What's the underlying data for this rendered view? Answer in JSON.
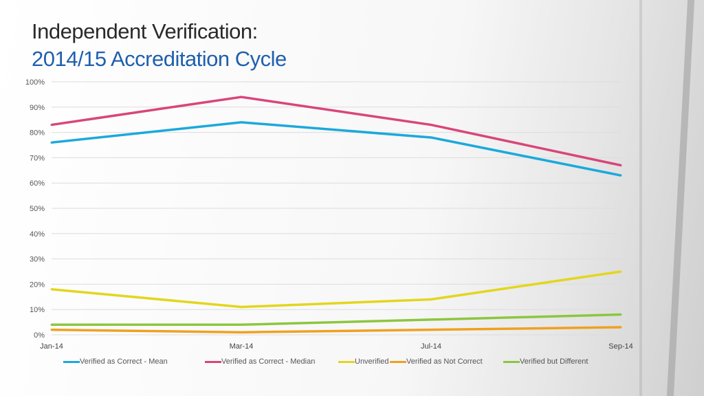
{
  "title": "Independent Verification:",
  "subtitle": "2014/15 Accreditation Cycle",
  "chart_data": {
    "type": "line",
    "categories": [
      "Jan-14",
      "Mar-14",
      "Jul-14",
      "Sep-14"
    ],
    "ylim": [
      0,
      100
    ],
    "yticks": [
      "0%",
      "10%",
      "20%",
      "30%",
      "40%",
      "50%",
      "60%",
      "70%",
      "80%",
      "90%",
      "100%"
    ],
    "grid": true,
    "legend": "bottom",
    "series": [
      {
        "name": "Verified as Correct - Mean",
        "color": "#1ba9dc",
        "values": [
          76,
          84,
          78,
          63
        ]
      },
      {
        "name": "Verified as Correct - Median",
        "color": "#d9457a",
        "values": [
          83,
          94,
          83,
          67
        ]
      },
      {
        "name": "Unverified",
        "color": "#e3d61e",
        "values": [
          18,
          11,
          14,
          25
        ]
      },
      {
        "name": "Verified as Not Correct",
        "color": "#f0a020",
        "values": [
          2,
          1,
          2,
          3
        ]
      },
      {
        "name": "Verified but Different",
        "color": "#8cc63f",
        "values": [
          4,
          4,
          6,
          8
        ]
      }
    ]
  }
}
